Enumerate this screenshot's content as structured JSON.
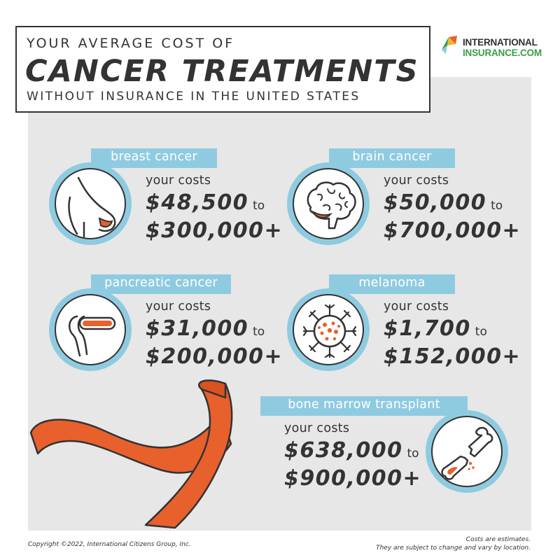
{
  "title": {
    "line1": "YOUR AVERAGE COST OF",
    "line2": "CANCER TREATMENTS",
    "line3": "WITHOUT INSURANCE IN THE UNITED STATES"
  },
  "logo": {
    "line1": "INTERNATIONAL",
    "line2": "INSURANCE.COM",
    "icon": "international-insurance-logo-mark"
  },
  "costs_label": "your costs",
  "to_word": "to",
  "cards": [
    {
      "label": "breast cancer",
      "low": "$48,500",
      "high": "$300,000+",
      "icon": "breast-icon"
    },
    {
      "label": "brain cancer",
      "low": "$50,000",
      "high": "$700,000+",
      "icon": "brain-icon"
    },
    {
      "label": "pancreatic cancer",
      "low": "$31,000",
      "high": "$200,000+",
      "icon": "pancreas-icon"
    },
    {
      "label": "melanoma",
      "low": "$1,700",
      "high": "$152,000+",
      "icon": "cancer-cell-icon"
    },
    {
      "label": "bone marrow transplant",
      "low": "$638,000",
      "high": "$900,000+",
      "icon": "broken-bone-icon"
    }
  ],
  "footer": {
    "copyright": "Copyright ©2022, International Citizens Group, Inc.",
    "note_line1": "Costs are estimates.",
    "note_line2": "They are subject to change and vary by location."
  },
  "colors": {
    "band": "#8fcbe0",
    "accent": "#e8602c",
    "dark": "#333333",
    "panel": "#e7e7e7",
    "logo_green": "#3a9d4a"
  }
}
